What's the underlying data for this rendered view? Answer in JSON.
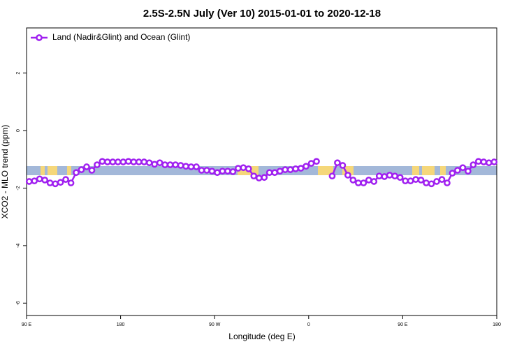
{
  "chart_data": {
    "type": "line",
    "title": "2.5S-2.5N July (Ver 10)   2015-01-01 to 2020-12-18",
    "xlabel": "Longitude (deg E)",
    "ylabel": "XCO2 - MLO trend (ppm)",
    "xlim": [
      90,
      540
    ],
    "ylim": [
      -6.43,
      3.57
    ],
    "xticks": [
      {
        "value": 90,
        "label": "90 E"
      },
      180,
      {
        "value": 270,
        "label": "90 W"
      },
      {
        "value": 360,
        "label": "0"
      },
      {
        "value": 450,
        "label": "90 E"
      },
      {
        "value": 540,
        "label": "180"
      }
    ],
    "yticks": [
      -6,
      -4,
      -2,
      0,
      2
    ],
    "legend": "top-left",
    "x": [
      92.5,
      97.5,
      102.5,
      107.5,
      112.5,
      117.5,
      122.5,
      127.5,
      132.5,
      137.5,
      142.5,
      147.5,
      152.5,
      157.5,
      162.5,
      167.5,
      172.5,
      177.5,
      182.5,
      187.5,
      192.5,
      197.5,
      202.5,
      207.5,
      212.5,
      217.5,
      222.5,
      227.5,
      232.5,
      237.5,
      242.5,
      247.5,
      252.5,
      257.5,
      262.5,
      267.5,
      272.5,
      277.5,
      282.5,
      287.5,
      292.5,
      297.5,
      302.5,
      307.5,
      312.5,
      317.5,
      322.5,
      327.5,
      332.5,
      337.5,
      342.5,
      347.5,
      352.5,
      357.5,
      362.5,
      367.5,
      372.5,
      377.5,
      382.5,
      387.5,
      392.5,
      397.5,
      402.5,
      407.5,
      412.5,
      417.5,
      422.5,
      427.5,
      432.5,
      437.5,
      442.5,
      447.5,
      452.5,
      457.5,
      462.5,
      467.5,
      472.5,
      477.5,
      482.5,
      487.5,
      492.5,
      497.5,
      502.5,
      507.5,
      512.5,
      517.5,
      522.5,
      527.5,
      532.5,
      537.5
    ],
    "series": [
      {
        "name": "Land (Nadir&Glint) and Ocean (Glint)",
        "color": "#a020f0",
        "values": [
          -1.77,
          -1.75,
          -1.68,
          -1.72,
          -1.82,
          -1.85,
          -1.8,
          -1.7,
          -1.82,
          -1.46,
          -1.36,
          -1.26,
          -1.38,
          -1.19,
          -1.07,
          -1.09,
          -1.09,
          -1.09,
          -1.09,
          -1.07,
          -1.09,
          -1.09,
          -1.09,
          -1.12,
          -1.17,
          -1.12,
          -1.19,
          -1.19,
          -1.19,
          -1.21,
          -1.24,
          -1.26,
          -1.26,
          -1.38,
          -1.38,
          -1.41,
          -1.46,
          -1.41,
          -1.41,
          -1.43,
          -1.31,
          -1.29,
          -1.33,
          -1.58,
          -1.65,
          -1.63,
          -1.46,
          -1.46,
          -1.41,
          -1.36,
          -1.36,
          -1.33,
          -1.31,
          -1.24,
          -1.14,
          -1.07,
          null,
          null,
          -1.58,
          -1.12,
          -1.21,
          -1.55,
          -1.72,
          -1.82,
          -1.82,
          -1.72,
          -1.77,
          -1.58,
          -1.6,
          -1.55,
          -1.58,
          -1.63,
          -1.75,
          -1.75,
          -1.7,
          -1.72,
          -1.82,
          -1.85,
          -1.77,
          -1.7,
          -1.82,
          -1.48,
          -1.38,
          -1.29,
          -1.41,
          -1.19,
          -1.07,
          -1.09,
          -1.12,
          -1.09
        ]
      }
    ]
  }
}
